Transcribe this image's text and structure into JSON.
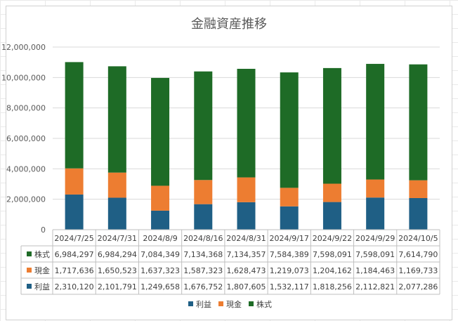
{
  "chart_data": {
    "type": "bar",
    "stacked": true,
    "title": "金融資産推移",
    "categories": [
      "2024/7/25",
      "2024/7/31",
      "2024/8/9",
      "2024/8/16",
      "2024/8/31",
      "2024/9/17",
      "2024/9/22",
      "2024/9/29",
      "2024/10/5"
    ],
    "series": [
      {
        "name": "利益",
        "color": "#1f5f85",
        "values": [
          2310120,
          2101791,
          1249658,
          1676752,
          1807605,
          1532117,
          1818256,
          2112821,
          2077286
        ]
      },
      {
        "name": "現金",
        "color": "#ed7d31",
        "values": [
          1717636,
          1650523,
          1637323,
          1587323,
          1628473,
          1219073,
          1204162,
          1184463,
          1169733
        ]
      },
      {
        "name": "株式",
        "color": "#1e6b26",
        "values": [
          6984297,
          6984294,
          7084349,
          7134368,
          7134357,
          7584389,
          7598091,
          7598091,
          7614790
        ]
      }
    ],
    "table_row_order": [
      "株式",
      "現金",
      "利益"
    ],
    "table_values": {
      "株式": [
        "6,984,297",
        "6,984,294",
        "7,084,349",
        "7,134,368",
        "7,134,357",
        "7,584,389",
        "7,598,091",
        "7,598,091",
        "7,614,790"
      ],
      "現金": [
        "1,717,636",
        "1,650,523",
        "1,637,323",
        "1,587,323",
        "1,628,473",
        "1,219,073",
        "1,204,162",
        "1,184,463",
        "1,169,733"
      ],
      "利益": [
        "2,310,120",
        "2,101,791",
        "1,249,658",
        "1,676,752",
        "1,807,605",
        "1,532,117",
        "1,818,256",
        "2,112,821",
        "2,077,286"
      ]
    },
    "yticks": [
      0,
      2000000,
      4000000,
      6000000,
      8000000,
      10000000,
      12000000
    ],
    "ytick_labels": [
      "0",
      "2,000,000",
      "4,000,000",
      "6,000,000",
      "8,000,000",
      "10,000,000",
      "12,000,000"
    ],
    "ylim": [
      0,
      12000000
    ],
    "grid": true,
    "legend": "bottom-center"
  }
}
